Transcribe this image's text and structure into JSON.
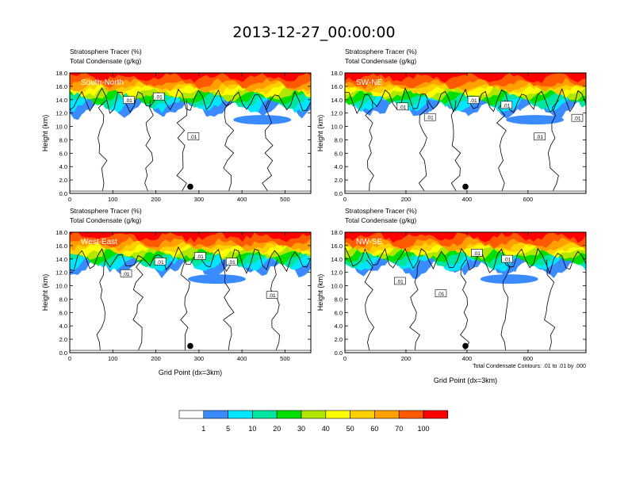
{
  "title": "2013-12-27_00:00:00",
  "footnote": "Total Condensate Contours: .01 to .01 by .000",
  "colors": [
    "#ffffff",
    "#3a8bff",
    "#00e6ff",
    "#00e6a0",
    "#00e000",
    "#b0e600",
    "#ffff00",
    "#ffd000",
    "#ffa000",
    "#ff5a00",
    "#ff0000"
  ],
  "colorbar_labels": [
    "1",
    "5",
    "10",
    "20",
    "30",
    "40",
    "50",
    "60",
    "70",
    "100"
  ],
  "chart_data": [
    {
      "type": "heatmap",
      "panel": "South-North",
      "label": "South-North",
      "line1": "Stratosphere Tracer   (%)",
      "line2": "Total Condensate   (g/kg)",
      "ylabel": "Height (km)",
      "xlabel": "",
      "xlim": [
        0,
        560
      ],
      "ylim": [
        0,
        18
      ],
      "xticks": [
        "0",
        "100",
        "200",
        "300",
        "400",
        "500"
      ],
      "xtick_vals": [
        0,
        100,
        200,
        300,
        400,
        500
      ],
      "yticks": [
        "0.0",
        "2.0",
        "4.0",
        "6.0",
        "8.0",
        "10.0",
        "12.0",
        "14.0",
        "16.0",
        "18.0"
      ],
      "contour_labels": [
        ".01",
        ".01",
        ".01"
      ],
      "marker_x": 280,
      "marker_y": 1.0
    },
    {
      "type": "heatmap",
      "panel": "SW-NE",
      "label": "SW-NE",
      "line1": "Stratosphere Tracer   (%)",
      "line2": "Total Condensate   (g/kg)",
      "ylabel": "Height (km)",
      "xlabel": "",
      "xlim": [
        0,
        790
      ],
      "ylim": [
        0,
        18
      ],
      "xticks": [
        "0",
        "200",
        "400",
        "600"
      ],
      "xtick_vals": [
        0,
        200,
        400,
        600
      ],
      "yticks": [
        "0.0",
        "2.0",
        "4.0",
        "6.0",
        "8.0",
        "10.0",
        "12.0",
        "14.0",
        "16.0",
        "18.0"
      ],
      "contour_labels": [
        ".01",
        ".01",
        ".01",
        ".01",
        ".01",
        ".01"
      ],
      "marker_x": 395,
      "marker_y": 1.0
    },
    {
      "type": "heatmap",
      "panel": "West-East",
      "label": "West-East",
      "line1": "Stratosphere Tracer   (%)",
      "line2": "Total Condensate   (g/kg)",
      "ylabel": "Height (km)",
      "xlabel": "Grid Point (dx=3km)",
      "xlim": [
        0,
        560
      ],
      "ylim": [
        0,
        18
      ],
      "xticks": [
        "0",
        "100",
        "200",
        "300",
        "400",
        "500"
      ],
      "xtick_vals": [
        0,
        100,
        200,
        300,
        400,
        500
      ],
      "yticks": [
        "0.0",
        "2.0",
        "4.0",
        "6.0",
        "8.0",
        "10.0",
        "12.0",
        "14.0",
        "16.0",
        "18.0"
      ],
      "contour_labels": [
        ".01",
        ".01",
        ".01",
        ".01",
        ".01"
      ],
      "marker_x": 280,
      "marker_y": 1.0
    },
    {
      "type": "heatmap",
      "panel": "NW-SE",
      "label": "NW-SE",
      "line1": "Stratosphere Tracer   (%)",
      "line2": "Total Condensate   (g/kg)",
      "ylabel": "Height (km)",
      "xlabel": "Grid Point (dx=3km)",
      "xlim": [
        0,
        790
      ],
      "ylim": [
        0,
        18
      ],
      "xticks": [
        "0",
        "200",
        "400",
        "600"
      ],
      "xtick_vals": [
        0,
        200,
        400,
        600
      ],
      "yticks": [
        "0.0",
        "2.0",
        "4.0",
        "6.0",
        "8.0",
        "10.0",
        "12.0",
        "14.0",
        "16.0",
        "18.0"
      ],
      "contour_labels": [
        ".01",
        ".01",
        ".01",
        ".01"
      ],
      "marker_x": 395,
      "marker_y": 1.0
    }
  ]
}
